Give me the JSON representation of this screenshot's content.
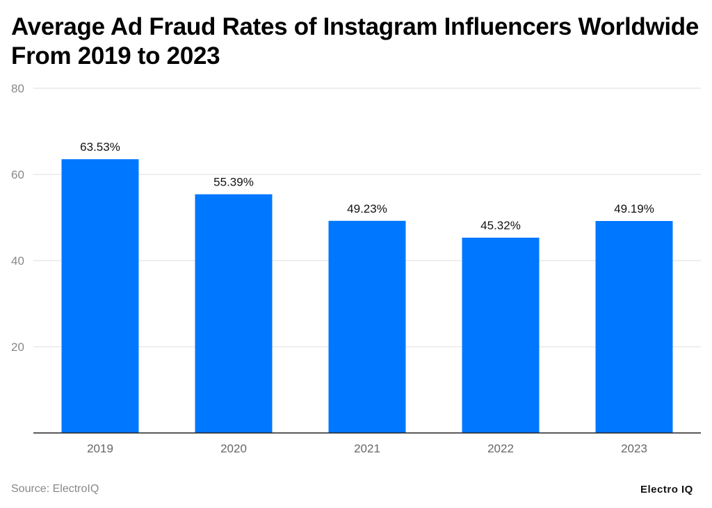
{
  "chart_data": {
    "type": "bar",
    "title": "Average Ad Fraud Rates of Instagram Influencers Worldwide From 2019 to 2023",
    "categories": [
      "2019",
      "2020",
      "2021",
      "2022",
      "2023"
    ],
    "values": [
      63.53,
      55.39,
      49.23,
      45.32,
      49.19
    ],
    "data_labels": [
      "63.53%",
      "55.39%",
      "49.23%",
      "45.32%",
      "49.19%"
    ],
    "xlabel": "",
    "ylabel": "",
    "ylim": [
      0,
      80
    ],
    "yticks": [
      20,
      40,
      60,
      80
    ],
    "grid": true,
    "bar_color": "#0077FF"
  },
  "source": "Source: ElectroIQ",
  "logo": "Electro IQ"
}
